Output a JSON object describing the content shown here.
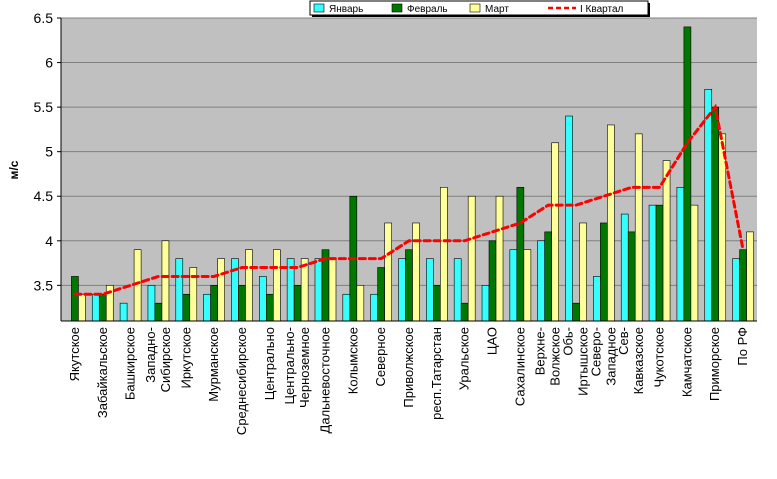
{
  "chart_data": {
    "type": "bar",
    "ylabel": "м/с",
    "ylim": [
      3.1,
      6.5
    ],
    "yticks": [
      3.5,
      4,
      4.5,
      5,
      5.5,
      6,
      6.5
    ],
    "grid": true,
    "legend_position": "top-right",
    "plot_background": "#c0c0c0",
    "categories": [
      [
        "Якутское"
      ],
      [
        "Забайкальское"
      ],
      [
        "Башкирское"
      ],
      [
        "Западно-",
        "Сибирское"
      ],
      [
        "Иркутское"
      ],
      [
        "Мурманское"
      ],
      [
        "Среднесибирское"
      ],
      [
        "Центрально"
      ],
      [
        "Центрально-",
        "Черноземное"
      ],
      [
        "Дальневосточное"
      ],
      [
        "Колымское"
      ],
      [
        "Северное"
      ],
      [
        "Приволжское"
      ],
      [
        "респ.Татарстан"
      ],
      [
        "Уральское"
      ],
      [
        "ЦАО"
      ],
      [
        "Сахалинское"
      ],
      [
        "Верхне-",
        "Волжское"
      ],
      [
        "Обь-",
        "Иртышское"
      ],
      [
        "Северо-",
        "Западное"
      ],
      [
        "Сев-",
        "Кавказское"
      ],
      [
        "Чукотское"
      ],
      [
        "Камчатское"
      ],
      [
        "Приморское"
      ],
      [
        "По РФ"
      ]
    ],
    "series": [
      {
        "name": "Январь",
        "type": "bar",
        "color": "#33ffff",
        "values": [
          3.1,
          3.4,
          3.3,
          3.5,
          3.8,
          3.4,
          3.8,
          3.6,
          3.8,
          3.8,
          3.4,
          3.4,
          3.8,
          3.8,
          3.8,
          3.5,
          3.9,
          4.0,
          5.4,
          3.6,
          4.3,
          4.4,
          4.6,
          5.7,
          3.8
        ]
      },
      {
        "name": "Февраль",
        "type": "bar",
        "color": "#007700",
        "values": [
          3.6,
          3.4,
          3.1,
          3.3,
          3.4,
          3.5,
          3.5,
          3.4,
          3.5,
          3.9,
          4.5,
          3.7,
          3.9,
          3.5,
          3.3,
          4.0,
          4.6,
          4.1,
          3.3,
          4.2,
          4.1,
          4.4,
          6.4,
          5.5,
          3.9
        ]
      },
      {
        "name": "Март",
        "type": "bar",
        "color": "#ffff99",
        "values": [
          3.4,
          3.5,
          3.9,
          4.0,
          3.7,
          3.8,
          3.9,
          3.9,
          3.8,
          3.8,
          3.5,
          4.2,
          4.2,
          4.6,
          4.5,
          4.5,
          3.9,
          5.1,
          4.2,
          5.3,
          5.2,
          4.9,
          4.4,
          5.2,
          4.1
        ]
      },
      {
        "name": "I Квартал",
        "type": "line",
        "color": "#ff0000",
        "values": [
          3.4,
          3.4,
          3.5,
          3.6,
          3.6,
          3.6,
          3.7,
          3.7,
          3.7,
          3.8,
          3.8,
          3.8,
          4.0,
          4.0,
          4.0,
          4.1,
          4.2,
          4.4,
          4.4,
          4.5,
          4.6,
          4.6,
          5.1,
          5.5,
          3.9
        ]
      }
    ]
  }
}
